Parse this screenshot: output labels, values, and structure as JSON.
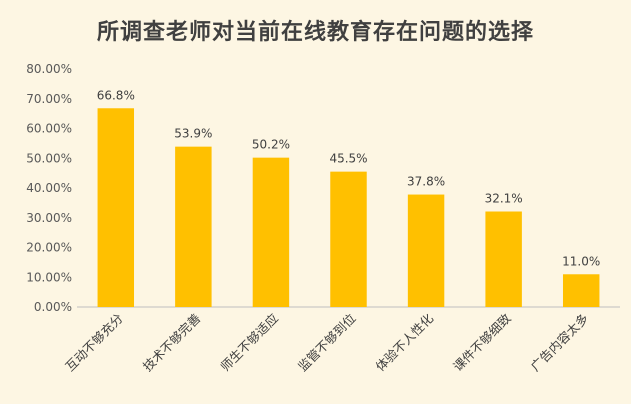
{
  "chart_data": {
    "type": "bar",
    "title": "所调查老师对当前在线教育存在问题的选择",
    "categories": [
      "互动不够充分",
      "技术不够完善",
      "师生不够适应",
      "监管不够到位",
      "体验不人性化",
      "课件不够细致",
      "广告内容太多"
    ],
    "values": [
      66.8,
      53.9,
      50.2,
      45.5,
      37.8,
      32.1,
      11.0
    ],
    "data_labels": [
      "66.8%",
      "53.9%",
      "50.2%",
      "45.5%",
      "37.8%",
      "32.1%",
      "11.0%"
    ],
    "y_ticks": [
      "0.00%",
      "10.00%",
      "20.00%",
      "30.00%",
      "40.00%",
      "50.00%",
      "60.00%",
      "70.00%",
      "80.00%"
    ],
    "ylim": [
      0,
      80
    ],
    "xlabel": "",
    "ylabel": "",
    "grid": false,
    "bar_color": "#ffc000",
    "axis_color": "#bfbfbf"
  }
}
